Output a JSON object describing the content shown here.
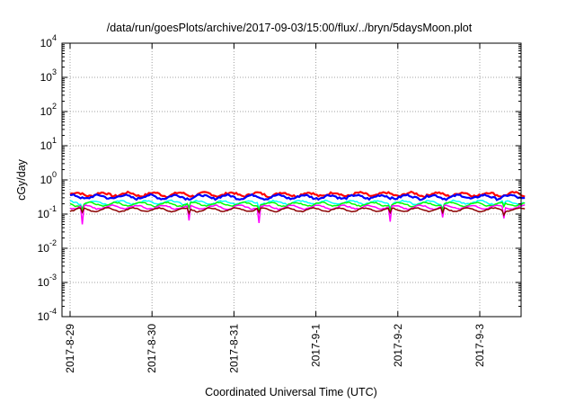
{
  "chart_data": {
    "type": "line",
    "title": "/data/run/goesPlots/archive/2017-09-03/15:00/flux/../bryn/5daysMoon.plot",
    "xlabel": "Coordinated Universal Time (UTC)",
    "ylabel": "cGy/day",
    "yscale": "log",
    "ylim": [
      0.0001,
      10000
    ],
    "xlim": [
      0,
      5.65
    ],
    "grid": true,
    "y_ticks": [
      {
        "value": 0.0001,
        "base": "10",
        "exp": "-4"
      },
      {
        "value": 0.001,
        "base": "10",
        "exp": "-3"
      },
      {
        "value": 0.01,
        "base": "10",
        "exp": "-2"
      },
      {
        "value": 0.1,
        "base": "10",
        "exp": "-1"
      },
      {
        "value": 1,
        "base": "10",
        "exp": "0"
      },
      {
        "value": 10,
        "base": "10",
        "exp": "1"
      },
      {
        "value": 100,
        "base": "10",
        "exp": "2"
      },
      {
        "value": 1000,
        "base": "10",
        "exp": "3"
      },
      {
        "value": 10000,
        "base": "10",
        "exp": "4"
      }
    ],
    "x_ticks": [
      {
        "value": 0,
        "label": "2017-8-29"
      },
      {
        "value": 1,
        "label": "2017-8-30"
      },
      {
        "value": 2,
        "label": "2017-8-31"
      },
      {
        "value": 3,
        "label": "2017-9-1"
      },
      {
        "value": 4,
        "label": "2017-9-2"
      },
      {
        "value": 5,
        "label": "2017-9-3"
      }
    ],
    "series": [
      {
        "color": "#ff0000",
        "level": 0.38,
        "noise": 0.07
      },
      {
        "color": "#0000ff",
        "level": 0.32,
        "noise": 0.07
      },
      {
        "color": "#00ffff",
        "level": 0.22,
        "noise": 0.05
      },
      {
        "color": "#00ff00",
        "level": 0.195,
        "noise": 0.04
      },
      {
        "color": "#ff00ff",
        "level": 0.16,
        "noise": 0.04
      },
      {
        "color": "#8b0000",
        "level": 0.135,
        "noise": 0.03
      }
    ],
    "dips": [
      {
        "x": 0.15,
        "value": 0.05
      },
      {
        "x": 1.45,
        "value": 0.065
      },
      {
        "x": 2.3,
        "value": 0.055
      },
      {
        "x": 3.9,
        "value": 0.06
      },
      {
        "x": 4.55,
        "value": 0.08
      },
      {
        "x": 5.3,
        "value": 0.075
      }
    ]
  }
}
